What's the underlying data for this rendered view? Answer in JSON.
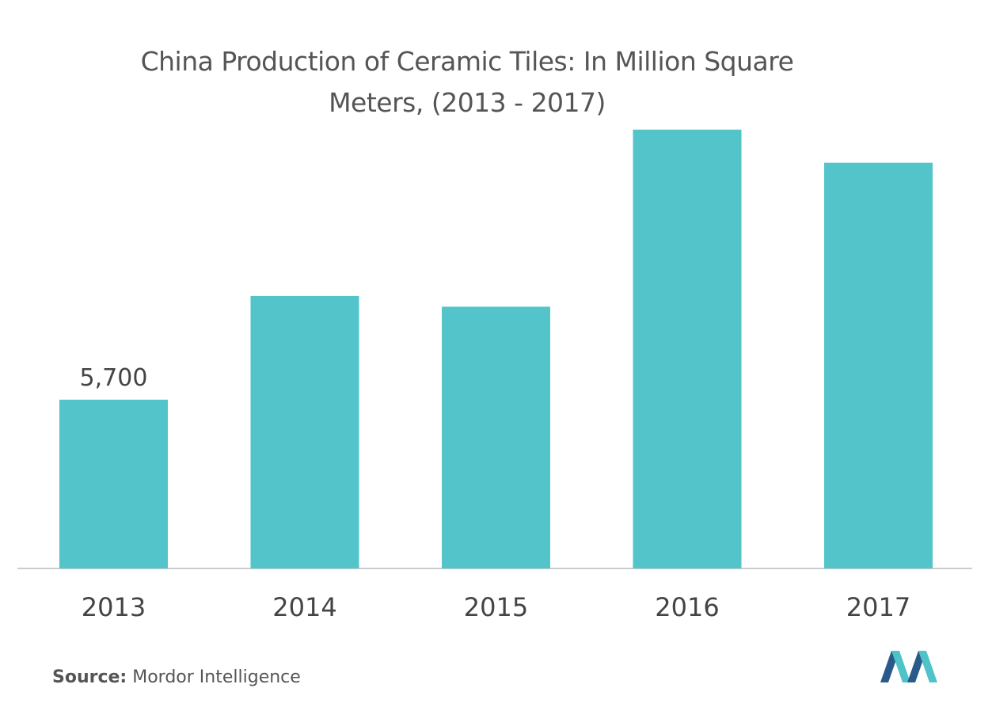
{
  "title_line1": "China Production of Ceramic Tiles: In Million Square",
  "title_line2": "Meters, (2013 - 2017)",
  "source_label": "Source:",
  "source_text": "Mordor Intelligence",
  "colors": {
    "bar": "#52c4ca",
    "axis": "#cccccc",
    "text": "#444444",
    "logo_dark": "#2a5a8a",
    "logo_light": "#4fc3c8"
  },
  "chart_data": {
    "type": "bar",
    "title": "China Production of Ceramic Tiles: In Million Square Meters, (2013 - 2017)",
    "categories": [
      "2013",
      "2014",
      "2015",
      "2016",
      "2017"
    ],
    "values": [
      5700,
      9200,
      8840,
      14820,
      13700
    ],
    "data_labels": [
      "5,700",
      "",
      "",
      "",
      ""
    ],
    "ylim": [
      0,
      15000
    ],
    "grid": false,
    "legend": "none"
  }
}
